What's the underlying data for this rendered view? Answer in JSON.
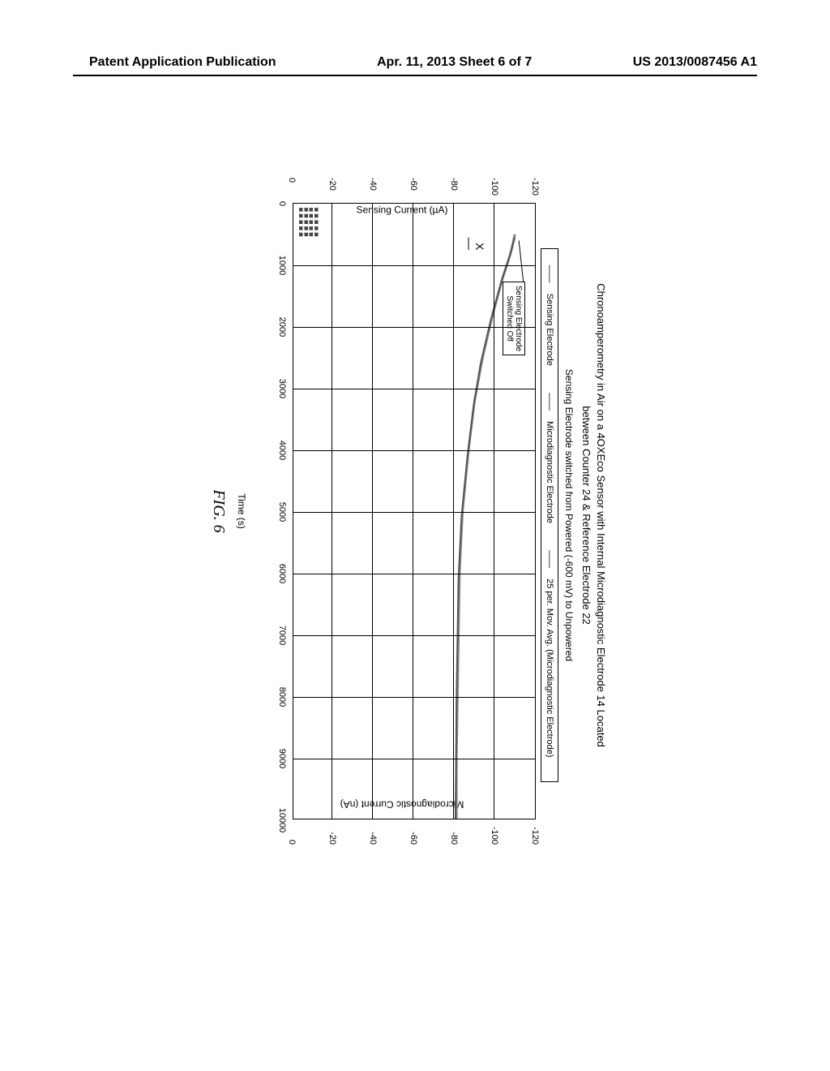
{
  "header": {
    "left": "Patent Application Publication",
    "center": "Apr. 11, 2013  Sheet 6 of 7",
    "right": "US 2013/0087456 A1"
  },
  "chart": {
    "type": "line",
    "title_line1": "Chronoamperometry in Air on a 4OXEco Sensor with Internal Microdiagnostic Electrode 14 Located",
    "title_line2": "between Counter 24 & Reference Electrode 22",
    "subtitle": "Sensing Electrode switched from Powered (-600 mV) to Unpowered",
    "legend": {
      "a": "Sensing Electrode",
      "b": "Microdiagnostic Electrode",
      "c": "25 per. Mov. Avg. (Microdiagnostic Electrode)"
    },
    "xlabel": "Time (s)",
    "ylabel_left": "Sensing Current (µA)",
    "ylabel_right": "Microdiagnostic Current (nA)",
    "xlim": [
      0,
      10000
    ],
    "xtick_step": 1000,
    "ylim_left": [
      0,
      -120
    ],
    "ytick_step_left": -20,
    "ylim_right": [
      0,
      -120
    ],
    "ytick_step_right": -20,
    "background_color": "#ffffff",
    "grid_color": "#000000",
    "series": {
      "sensing": {
        "color": "#333333",
        "points_x": [
          0,
          50,
          100,
          150,
          200,
          300,
          400,
          500,
          520
        ],
        "points_y": [
          -113,
          -112,
          -113,
          -110,
          -113,
          -112,
          -113,
          -112,
          -113
        ]
      },
      "microdiagnostic": {
        "color": "#888888",
        "points_x": [
          500,
          800,
          1200,
          1800,
          2500,
          3200,
          4000,
          5000,
          6000,
          7000,
          8000,
          9000,
          10000
        ],
        "points_y": [
          -110,
          -108,
          -104,
          -99,
          -94,
          -90,
          -87,
          -84,
          -82.5,
          -82,
          -81.5,
          -81,
          -81
        ]
      },
      "movavg": {
        "color": "#555555",
        "points_x": [
          550,
          900,
          1300,
          1900,
          2600,
          3300,
          4100,
          5100,
          6100,
          7100,
          8100,
          9100,
          10000
        ],
        "points_y": [
          -110,
          -107,
          -103,
          -98,
          -93,
          -89.5,
          -86.5,
          -83.5,
          -82,
          -81.5,
          -81,
          -80.8,
          -80.5
        ]
      }
    },
    "annotation_box": "Sensing Electrode\nSwitched Off",
    "annotation_x": "X",
    "fig_caption": "FIG. 6"
  }
}
